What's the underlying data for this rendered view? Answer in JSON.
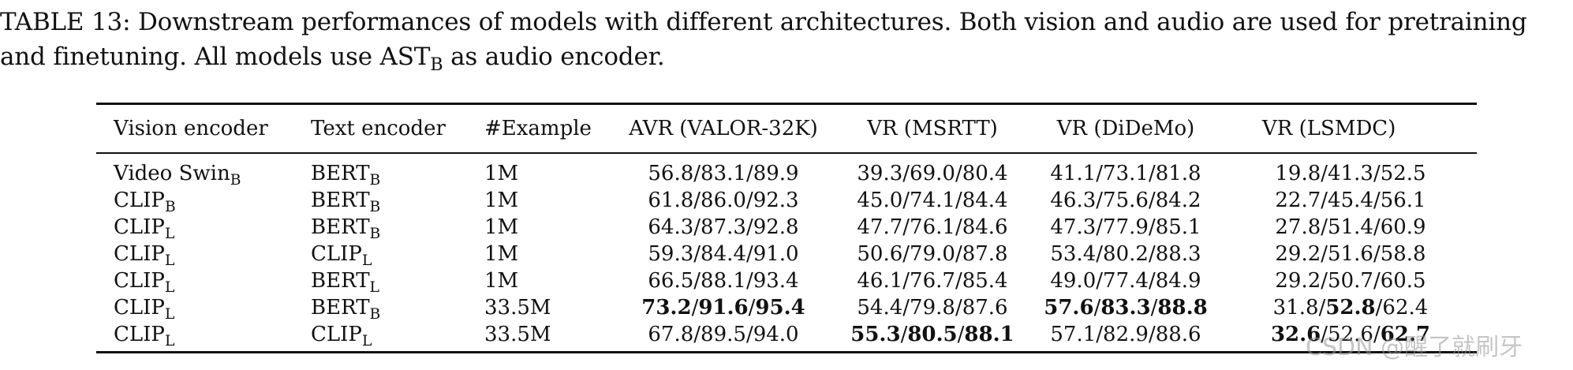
{
  "caption": {
    "text_before": "TABLE 13: Downstream performances of models with different architectures. Both vision and audio are used for pretraining and finetuning. All models use AST",
    "subscript": "B",
    "text_after": " as audio encoder."
  },
  "table": {
    "headers": [
      "Vision encoder",
      "Text encoder",
      "#Example",
      "AVR (VALOR-32K)",
      "VR (MSRTT)",
      "VR (DiDeMo)",
      "VR (LSMDC)"
    ],
    "rows": [
      {
        "vision": {
          "base": "Video Swin",
          "sub": "B"
        },
        "text": {
          "base": "BERT",
          "sub": "B"
        },
        "example": "1M",
        "avr": [
          {
            "v": "56.8",
            "b": false
          },
          {
            "v": "83.1",
            "b": false
          },
          {
            "v": "89.9",
            "b": false
          }
        ],
        "msrtt": [
          {
            "v": "39.3",
            "b": false
          },
          {
            "v": "69.0",
            "b": false
          },
          {
            "v": "80.4",
            "b": false
          }
        ],
        "didemo": [
          {
            "v": "41.1",
            "b": false
          },
          {
            "v": "73.1",
            "b": false
          },
          {
            "v": "81.8",
            "b": false
          }
        ],
        "lsmdc": [
          {
            "v": "19.8",
            "b": false
          },
          {
            "v": "41.3",
            "b": false
          },
          {
            "v": "52.5",
            "b": false
          }
        ]
      },
      {
        "vision": {
          "base": "CLIP",
          "sub": "B"
        },
        "text": {
          "base": "BERT",
          "sub": "B"
        },
        "example": "1M",
        "avr": [
          {
            "v": "61.8",
            "b": false
          },
          {
            "v": "86.0",
            "b": false
          },
          {
            "v": "92.3",
            "b": false
          }
        ],
        "msrtt": [
          {
            "v": "45.0",
            "b": false
          },
          {
            "v": "74.1",
            "b": false
          },
          {
            "v": "84.4",
            "b": false
          }
        ],
        "didemo": [
          {
            "v": "46.3",
            "b": false
          },
          {
            "v": "75.6",
            "b": false
          },
          {
            "v": "84.2",
            "b": false
          }
        ],
        "lsmdc": [
          {
            "v": "22.7",
            "b": false
          },
          {
            "v": "45.4",
            "b": false
          },
          {
            "v": "56.1",
            "b": false
          }
        ]
      },
      {
        "vision": {
          "base": "CLIP",
          "sub": "L"
        },
        "text": {
          "base": "BERT",
          "sub": "B"
        },
        "example": "1M",
        "avr": [
          {
            "v": "64.3",
            "b": false
          },
          {
            "v": "87.3",
            "b": false
          },
          {
            "v": "92.8",
            "b": false
          }
        ],
        "msrtt": [
          {
            "v": "47.7",
            "b": false
          },
          {
            "v": "76.1",
            "b": false
          },
          {
            "v": "84.6",
            "b": false
          }
        ],
        "didemo": [
          {
            "v": "47.3",
            "b": false
          },
          {
            "v": "77.9",
            "b": false
          },
          {
            "v": "85.1",
            "b": false
          }
        ],
        "lsmdc": [
          {
            "v": "27.8",
            "b": false
          },
          {
            "v": "51.4",
            "b": false
          },
          {
            "v": "60.9",
            "b": false
          }
        ]
      },
      {
        "vision": {
          "base": "CLIP",
          "sub": "L"
        },
        "text": {
          "base": "CLIP",
          "sub": "L"
        },
        "example": "1M",
        "avr": [
          {
            "v": "59.3",
            "b": false
          },
          {
            "v": "84.4",
            "b": false
          },
          {
            "v": "91.0",
            "b": false
          }
        ],
        "msrtt": [
          {
            "v": "50.6",
            "b": false
          },
          {
            "v": "79.0",
            "b": false
          },
          {
            "v": "87.8",
            "b": false
          }
        ],
        "didemo": [
          {
            "v": "53.4",
            "b": false
          },
          {
            "v": "80.2",
            "b": false
          },
          {
            "v": "88.3",
            "b": false
          }
        ],
        "lsmdc": [
          {
            "v": "29.2",
            "b": false
          },
          {
            "v": "51.6",
            "b": false
          },
          {
            "v": "58.8",
            "b": false
          }
        ]
      },
      {
        "vision": {
          "base": "CLIP",
          "sub": "L"
        },
        "text": {
          "base": "BERT",
          "sub": "L"
        },
        "example": "1M",
        "avr": [
          {
            "v": "66.5",
            "b": false
          },
          {
            "v": "88.1",
            "b": false
          },
          {
            "v": "93.4",
            "b": false
          }
        ],
        "msrtt": [
          {
            "v": "46.1",
            "b": false
          },
          {
            "v": "76.7",
            "b": false
          },
          {
            "v": "85.4",
            "b": false
          }
        ],
        "didemo": [
          {
            "v": "49.0",
            "b": false
          },
          {
            "v": "77.4",
            "b": false
          },
          {
            "v": "84.9",
            "b": false
          }
        ],
        "lsmdc": [
          {
            "v": "29.2",
            "b": false
          },
          {
            "v": "50.7",
            "b": false
          },
          {
            "v": "60.5",
            "b": false
          }
        ]
      },
      {
        "vision": {
          "base": "CLIP",
          "sub": "L"
        },
        "text": {
          "base": "BERT",
          "sub": "B"
        },
        "example": "33.5M",
        "avr": [
          {
            "v": "73.2",
            "b": true
          },
          {
            "v": "91.6",
            "b": true
          },
          {
            "v": "95.4",
            "b": true
          }
        ],
        "msrtt": [
          {
            "v": "54.4",
            "b": false
          },
          {
            "v": "79.8",
            "b": false
          },
          {
            "v": "87.6",
            "b": false
          }
        ],
        "didemo": [
          {
            "v": "57.6",
            "b": true
          },
          {
            "v": "83.3",
            "b": true
          },
          {
            "v": "88.8",
            "b": true
          }
        ],
        "lsmdc": [
          {
            "v": "31.8",
            "b": false
          },
          {
            "v": "52.8",
            "b": true
          },
          {
            "v": "62.4",
            "b": false
          }
        ]
      },
      {
        "vision": {
          "base": "CLIP",
          "sub": "L"
        },
        "text": {
          "base": "CLIP",
          "sub": "L"
        },
        "example": "33.5M",
        "avr": [
          {
            "v": "67.8",
            "b": false
          },
          {
            "v": "89.5",
            "b": false
          },
          {
            "v": "94.0",
            "b": false
          }
        ],
        "msrtt": [
          {
            "v": "55.3",
            "b": true
          },
          {
            "v": "80.5",
            "b": true
          },
          {
            "v": "88.1",
            "b": true
          }
        ],
        "didemo": [
          {
            "v": "57.1",
            "b": false
          },
          {
            "v": "82.9",
            "b": false
          },
          {
            "v": "88.6",
            "b": false
          }
        ],
        "lsmdc": [
          {
            "v": "32.6",
            "b": true
          },
          {
            "v": "52.6",
            "b": false
          },
          {
            "v": "62.7",
            "b": true
          }
        ]
      }
    ]
  },
  "watermark": "CSDN @醒了就刷牙"
}
